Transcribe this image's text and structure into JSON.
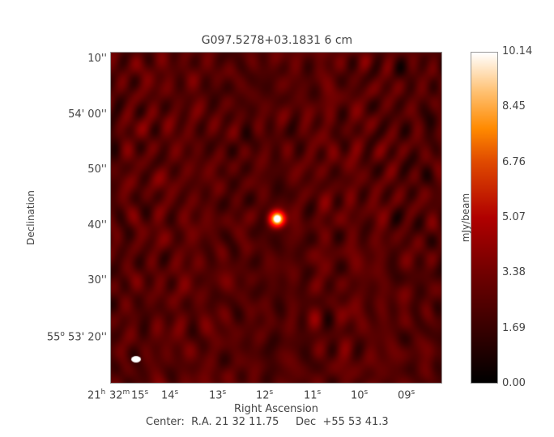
{
  "title": "G097.5278+03.1831 6 cm",
  "chart_data": {
    "type": "heatmap",
    "title": "G097.5278+03.1831 6 cm",
    "xlabel": "Right Ascension",
    "ylabel": "Declination",
    "colorbar_label": "mJy/beam",
    "colorbar_ticks": [
      "0.00",
      "1.69",
      "3.38",
      "5.07",
      "6.76",
      "8.45",
      "10.14"
    ],
    "colorbar_range": [
      0.0,
      10.14
    ],
    "colormap": "heat (black-red-orange-white)",
    "y_ticks": [
      "10''",
      "54' 00''",
      "50''",
      "40''",
      "30''",
      "20''"
    ],
    "y_first_prefix": "55",
    "x_ticks": [
      {
        "main": "21",
        "unit": "h"
      },
      {
        "main": "32",
        "unit": "m"
      },
      {
        "main": "15",
        "unit": "s"
      },
      {
        "main": "14",
        "unit": "s"
      },
      {
        "main": "13",
        "unit": "s"
      },
      {
        "main": "12",
        "unit": "s"
      },
      {
        "main": "11",
        "unit": "s"
      },
      {
        "main": "10",
        "unit": "s"
      },
      {
        "main": "09",
        "unit": "s"
      }
    ],
    "source": {
      "peak_mJy_per_beam": 10.14,
      "ra": "21 32 11.65",
      "dec": "+55 53 41"
    },
    "beam": "white ellipse, lower-left"
  },
  "center_text": "Center:  R.A. 21 32 11.75     Dec  +55 53 41.3",
  "colors": {
    "background_noise": "#2a0000",
    "frame": "#999999",
    "text": "#444444"
  }
}
